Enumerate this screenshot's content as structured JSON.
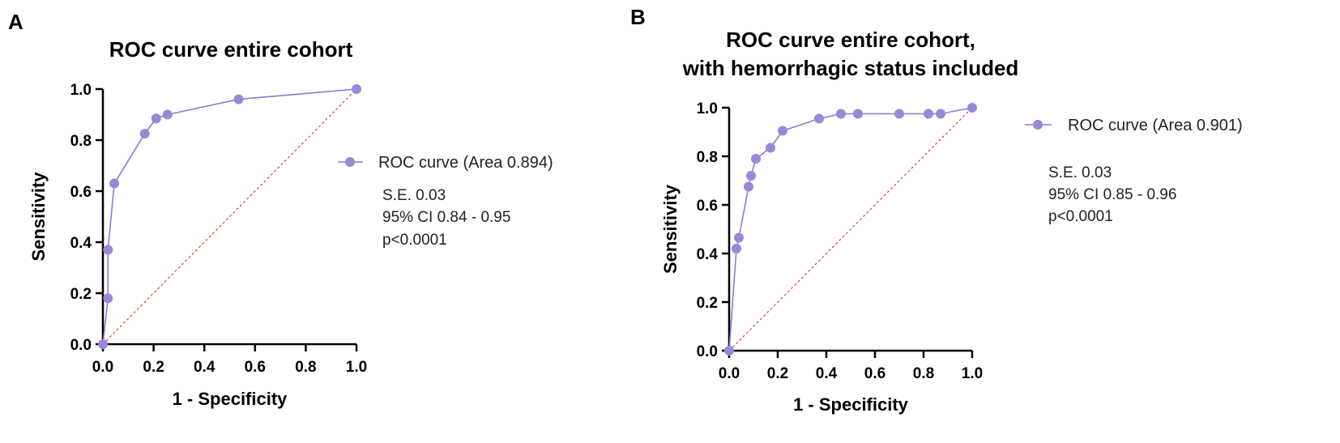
{
  "colors": {
    "series": "#9b87d8",
    "series_line": "#8f7ad0",
    "reference": "#e03c3c",
    "axis": "#000000"
  },
  "chart_data": [
    {
      "type": "line",
      "panel": "A",
      "title": [
        "ROC curve entire cohort"
      ],
      "xlabel": "1 - Specificity",
      "ylabel": "Sensitivity",
      "xlim": [
        0,
        1
      ],
      "ylim": [
        0,
        1
      ],
      "xticks": [
        "0.0",
        "0.2",
        "0.4",
        "0.6",
        "0.8",
        "1.0"
      ],
      "yticks": [
        "0.0",
        "0.2",
        "0.4",
        "0.6",
        "0.8",
        "1.0"
      ],
      "series": [
        {
          "name": "ROC curve (Area 0.894)",
          "x": [
            0.0,
            0.02,
            0.02,
            0.045,
            0.165,
            0.21,
            0.255,
            0.535,
            1.0
          ],
          "y": [
            0.0,
            0.18,
            0.37,
            0.63,
            0.825,
            0.885,
            0.9,
            0.96,
            1.0
          ]
        }
      ],
      "reference_line": {
        "x": [
          0,
          1
        ],
        "y": [
          0,
          1
        ]
      },
      "legend": "right",
      "stats": [
        "S.E. 0.03",
        "95% CI 0.84 - 0.95",
        "p<0.0001"
      ]
    },
    {
      "type": "line",
      "panel": "B",
      "title": [
        "ROC curve entire cohort,",
        "with hemorrhagic status included"
      ],
      "xlabel": "1 - Specificity",
      "ylabel": "Sensitivity",
      "xlim": [
        0,
        1
      ],
      "ylim": [
        0,
        1
      ],
      "xticks": [
        "0.0",
        "0.2",
        "0.4",
        "0.6",
        "0.8",
        "1.0"
      ],
      "yticks": [
        "0.0",
        "0.2",
        "0.4",
        "0.6",
        "0.8",
        "1.0"
      ],
      "series": [
        {
          "name": "ROC curve (Area 0.901)",
          "x": [
            0.0,
            0.03,
            0.04,
            0.08,
            0.09,
            0.11,
            0.17,
            0.22,
            0.37,
            0.46,
            0.53,
            0.7,
            0.82,
            0.87,
            1.0
          ],
          "y": [
            0.0,
            0.42,
            0.465,
            0.675,
            0.72,
            0.79,
            0.835,
            0.905,
            0.955,
            0.975,
            0.975,
            0.975,
            0.975,
            0.975,
            1.0
          ]
        }
      ],
      "reference_line": {
        "x": [
          0,
          1
        ],
        "y": [
          0,
          1
        ]
      },
      "legend": "right",
      "stats": [
        "S.E. 0.03",
        "95% CI 0.85 - 0.96",
        "p<0.0001"
      ]
    }
  ]
}
